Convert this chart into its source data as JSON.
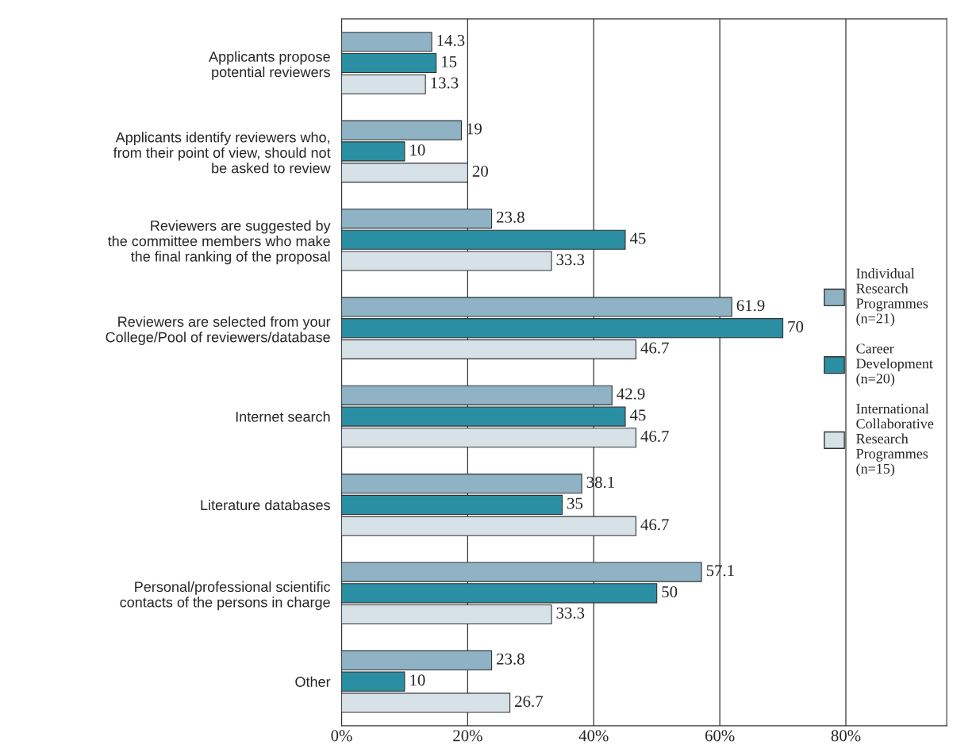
{
  "chart_data": {
    "type": "bar",
    "orientation": "horizontal",
    "categories": [
      "Applicants propose\npotential reviewers",
      "Applicants identify reviewers who,\nfrom their point of view, should not\nbe asked to review",
      "Reviewers are suggested by\nthe committee members who make\nthe final ranking of the proposal",
      "Reviewers are selected from your\nCollege/Pool of reviewers/database",
      "Internet search",
      "Literature databases",
      "Personal/professional scientific\ncontacts of the persons in charge",
      "Other"
    ],
    "series": [
      {
        "name": "Individual\nResearch\nProgrammes\n(n=21)",
        "color": "#8fb3c4",
        "values": [
          14.3,
          19,
          23.8,
          61.9,
          42.9,
          38.1,
          57.1,
          23.8
        ]
      },
      {
        "name": "Career\nDevelopment\n(n=20)",
        "color": "#2a8fa3",
        "values": [
          15,
          10,
          45,
          70,
          45,
          35,
          50,
          10
        ]
      },
      {
        "name": "International\nCollaborative\nResearch\nProgrammes\n(n=15)",
        "color": "#d6e2e8",
        "values": [
          13.3,
          20,
          33.3,
          46.7,
          46.7,
          46.7,
          33.3,
          26.7
        ]
      }
    ],
    "xlim": [
      0,
      96
    ],
    "xticks": [
      {
        "value": 0,
        "label": "0%"
      },
      {
        "value": 20,
        "label": "20%"
      },
      {
        "value": 40,
        "label": "40%"
      },
      {
        "value": 60,
        "label": "60%"
      },
      {
        "value": 80,
        "label": "80%"
      }
    ],
    "grid": "x",
    "legend": "right",
    "data_labels": true
  }
}
